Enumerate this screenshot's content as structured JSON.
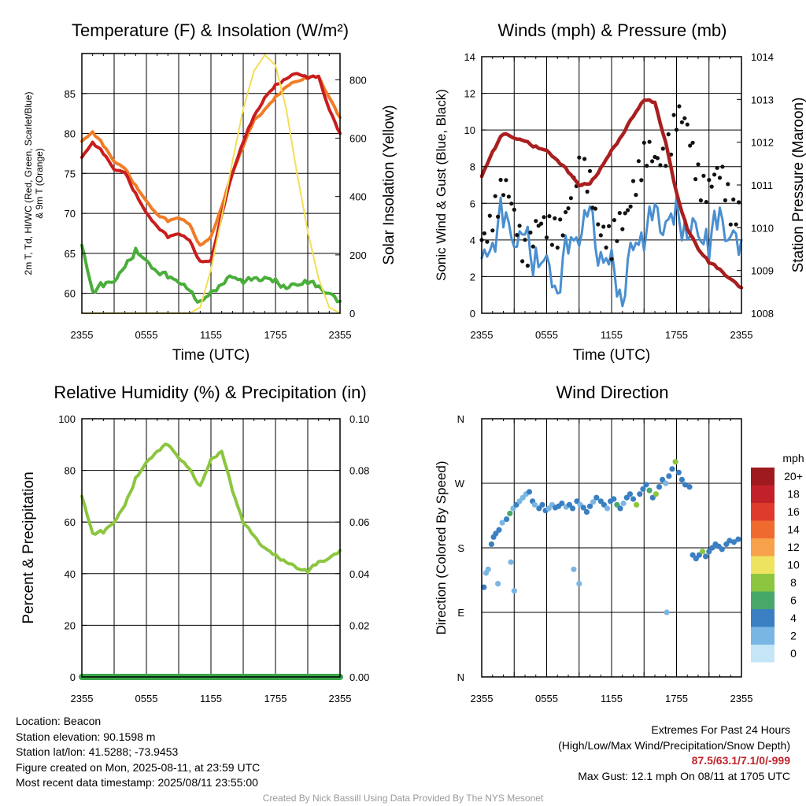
{
  "chart_data": [
    {
      "type": "line",
      "title": "Temperature (F) & Insolation (W/m²)",
      "xlabel": "Time (UTC)",
      "ylabel": "2m T, Td, HI/WC (Red, Green, Scarlet/Blue) & 9m T (Orange)",
      "ylabel_lines": [
        "2m T, Td, HI/WC (Red, Green, Scarlet/Blue)",
        "& 9m T (Orange)"
      ],
      "y2label": "Solar Insolation (Yellow)",
      "x_ticks": [
        "2355",
        "0555",
        "1155",
        "1755",
        "2355"
      ],
      "y_ticks": [
        60,
        65,
        70,
        75,
        80,
        85
      ],
      "y2_ticks": [
        0,
        200,
        400,
        600,
        800
      ],
      "ylim": [
        57.5,
        90
      ],
      "y2lim": [
        0,
        890
      ],
      "x_hours": [
        0,
        1,
        2,
        3,
        4,
        5,
        6,
        7,
        8,
        9,
        10,
        11,
        12,
        13,
        14,
        15,
        16,
        17,
        18,
        19,
        20,
        21,
        22,
        23,
        24
      ],
      "series": [
        {
          "color": "#4aae3a",
          "axis": "left",
          "values": [
            66,
            60.5,
            61,
            61.5,
            63,
            65.5,
            64,
            63,
            62,
            61.5,
            60,
            59,
            60,
            61.5,
            62,
            61.5,
            61.5,
            62,
            61.5,
            61,
            61,
            61.5,
            60.5,
            60,
            59
          ]
        },
        {
          "color": "#f07c27",
          "axis": "left",
          "values": [
            79,
            80.3,
            78.5,
            76.5,
            75.5,
            73.5,
            71.5,
            70,
            69,
            69.5,
            68.5,
            66,
            67,
            71,
            75,
            78.5,
            81.5,
            83,
            84.5,
            86,
            86.5,
            87,
            87,
            84.5,
            82
          ]
        },
        {
          "color": "#c91d1d",
          "axis": "left",
          "values": [
            77,
            79,
            77.5,
            75.5,
            75,
            72.5,
            70,
            68.5,
            67,
            67.5,
            66.5,
            64,
            64,
            70,
            75,
            79,
            82,
            84.5,
            86,
            87,
            87.5,
            87,
            87,
            83,
            80
          ]
        },
        {
          "color": "#f2df55",
          "axis": "right",
          "values": [
            0,
            0,
            0,
            0,
            0,
            0,
            0,
            0,
            0,
            0,
            0,
            20,
            150,
            330,
            520,
            700,
            830,
            885,
            850,
            700,
            480,
            280,
            120,
            20,
            0
          ]
        }
      ]
    },
    {
      "type": "scatter",
      "title": "Winds (mph) & Pressure (mb)",
      "xlabel": "Time (UTC)",
      "ylabel": "Sonic Wind & Gust (Blue, Black)",
      "y2label": "Station Pressure (Maroon)",
      "x_ticks": [
        "2355",
        "0555",
        "1155",
        "1755",
        "2355"
      ],
      "y_ticks": [
        0,
        2,
        4,
        6,
        8,
        10,
        12,
        14
      ],
      "y2_ticks": [
        1008,
        1009,
        1010,
        1011,
        1012,
        1013,
        1014
      ],
      "ylim": [
        0,
        14
      ],
      "y2lim": [
        1008,
        1014
      ],
      "x_hours": [
        0,
        1,
        2,
        3,
        4,
        5,
        6,
        7,
        8,
        9,
        10,
        11,
        12,
        13,
        14,
        15,
        16,
        17,
        18,
        19,
        20,
        21,
        22,
        23,
        24
      ],
      "series": [
        {
          "color": "#4a8fd0",
          "kind": "line",
          "axis": "left",
          "values": [
            3,
            4.5,
            5.2,
            3.8,
            3.5,
            3.2,
            2.8,
            2,
            3.5,
            4.2,
            4.8,
            3.2,
            2.8,
            1.5,
            3.5,
            4.2,
            4.8,
            5,
            5.5,
            5.2,
            4.2,
            3.8,
            4.6,
            4.2,
            4
          ]
        },
        {
          "color": "#111111",
          "kind": "dots",
          "axis": "left",
          "values": [
            4,
            6,
            6.5,
            5,
            4,
            4.5,
            4,
            5,
            6,
            7,
            7.5,
            5,
            3,
            5,
            7.5,
            8,
            8,
            9.5,
            10.5,
            9.5,
            8,
            7,
            7,
            6,
            6.5
          ]
        },
        {
          "color": "#a91f1f",
          "kind": "line",
          "axis": "right",
          "values": [
            1011.2,
            1011.8,
            1012.2,
            1012.1,
            1012.0,
            1011.9,
            1011.8,
            1011.6,
            1011.3,
            1011.0,
            1011.0,
            1011.4,
            1011.8,
            1012.2,
            1012.6,
            1013.0,
            1012.9,
            1012.0,
            1010.8,
            1010.0,
            1009.5,
            1009.2,
            1009.0,
            1008.8,
            1008.6
          ]
        }
      ]
    },
    {
      "type": "line",
      "title": "Relative Humidity (%) & Precipitation (in)",
      "ylabel": "Percent & Precipitation",
      "x_ticks": [
        "2355",
        "0555",
        "1155",
        "1755",
        "2355"
      ],
      "y_ticks": [
        0,
        20,
        40,
        60,
        80,
        100
      ],
      "y2_ticks": [
        "0.00",
        "0.02",
        "0.04",
        "0.06",
        "0.08",
        "0.10"
      ],
      "ylim": [
        0,
        100
      ],
      "y2lim": [
        0,
        0.1
      ],
      "x_hours": [
        0,
        1,
        2,
        3,
        4,
        5,
        6,
        7,
        8,
        9,
        10,
        11,
        12,
        13,
        14,
        15,
        16,
        17,
        18,
        19,
        20,
        21,
        22,
        23,
        24
      ],
      "series": [
        {
          "color": "#8cc63f",
          "axis": "left",
          "values": [
            70,
            56,
            56,
            60,
            66,
            77,
            83,
            88,
            90,
            85,
            80,
            74,
            84,
            88,
            72,
            60,
            54,
            50,
            47,
            45,
            42,
            41,
            44,
            46,
            49
          ]
        },
        {
          "color": "#3aa64a",
          "axis": "right",
          "values": [
            0,
            0,
            0,
            0,
            0,
            0,
            0,
            0,
            0,
            0,
            0,
            0,
            0,
            0,
            0,
            0,
            0,
            0,
            0,
            0,
            0,
            0,
            0,
            0,
            0
          ]
        }
      ]
    },
    {
      "type": "scatter",
      "title": "Wind Direction",
      "ylabel": "Direction (Colored By Speed)",
      "x_ticks": [
        "2355",
        "0555",
        "1155",
        "1755",
        "2355"
      ],
      "y_ticks": [
        "N",
        "E",
        "S",
        "W",
        "N"
      ],
      "ylim": [
        0,
        360
      ],
      "direction_degrees": {
        "N": 0,
        "E": 90,
        "S": 180,
        "W": 270
      },
      "points": [
        [
          0.2,
          125,
          3
        ],
        [
          0.4,
          145,
          2
        ],
        [
          0.6,
          150,
          2
        ],
        [
          0.9,
          185,
          4
        ],
        [
          1.1,
          195,
          3
        ],
        [
          1.3,
          200,
          4
        ],
        [
          1.6,
          205,
          3
        ],
        [
          1.9,
          215,
          2
        ],
        [
          2.3,
          220,
          4
        ],
        [
          2.6,
          228,
          6
        ],
        [
          2.9,
          235,
          2
        ],
        [
          3.2,
          240,
          3
        ],
        [
          3.5,
          245,
          1
        ],
        [
          3.8,
          250,
          2
        ],
        [
          4.1,
          255,
          2
        ],
        [
          4.4,
          258,
          3
        ],
        [
          4.7,
          245,
          4
        ],
        [
          4.9,
          240,
          2
        ],
        [
          5.3,
          235,
          4
        ],
        [
          5.6,
          240,
          3
        ],
        [
          5.9,
          232,
          4
        ],
        [
          6.2,
          235,
          1
        ],
        [
          6.5,
          240,
          2
        ],
        [
          6.8,
          236,
          4
        ],
        [
          7.1,
          238,
          3
        ],
        [
          7.4,
          242,
          4
        ],
        [
          7.8,
          237,
          2
        ],
        [
          8.1,
          240,
          4
        ],
        [
          8.4,
          235,
          3
        ],
        [
          8.8,
          245,
          4
        ],
        [
          9.1,
          240,
          2
        ],
        [
          9.4,
          236,
          4
        ],
        [
          9.7,
          230,
          3
        ],
        [
          10.0,
          238,
          4
        ],
        [
          10.3,
          244,
          2
        ],
        [
          10.6,
          250,
          4
        ],
        [
          11.0,
          245,
          3
        ],
        [
          11.3,
          240,
          4
        ],
        [
          11.6,
          235,
          2
        ],
        [
          11.9,
          245,
          4
        ],
        [
          12.2,
          248,
          3
        ],
        [
          12.5,
          240,
          6
        ],
        [
          12.8,
          235,
          4
        ],
        [
          13.1,
          242,
          2
        ],
        [
          13.4,
          250,
          4
        ],
        [
          13.7,
          255,
          3
        ],
        [
          14.0,
          248,
          4
        ],
        [
          14.3,
          240,
          7
        ],
        [
          14.6,
          255,
          4
        ],
        [
          14.9,
          262,
          3
        ],
        [
          15.2,
          268,
          4
        ],
        [
          15.5,
          260,
          6
        ],
        [
          15.8,
          250,
          4
        ],
        [
          16.1,
          255,
          7
        ],
        [
          16.4,
          265,
          3
        ],
        [
          16.7,
          275,
          4
        ],
        [
          17.0,
          270,
          2
        ],
        [
          17.3,
          280,
          4
        ],
        [
          17.6,
          290,
          3
        ],
        [
          17.9,
          300,
          7
        ],
        [
          18.2,
          285,
          4
        ],
        [
          18.5,
          275,
          3
        ],
        [
          18.8,
          268,
          4
        ],
        [
          19.2,
          265,
          4
        ],
        [
          19.5,
          170,
          4
        ],
        [
          19.8,
          165,
          3
        ],
        [
          20.1,
          170,
          4
        ],
        [
          20.4,
          175,
          7
        ],
        [
          20.7,
          168,
          4
        ],
        [
          21.0,
          175,
          3
        ],
        [
          21.3,
          180,
          4
        ],
        [
          21.6,
          185,
          3
        ],
        [
          21.9,
          182,
          4
        ],
        [
          22.2,
          178,
          4
        ],
        [
          22.6,
          185,
          3
        ],
        [
          22.9,
          190,
          4
        ],
        [
          23.3,
          188,
          4
        ],
        [
          23.7,
          192,
          3
        ],
        [
          1.5,
          130,
          1
        ],
        [
          2.7,
          160,
          2
        ],
        [
          3.0,
          120,
          1
        ],
        [
          8.5,
          150,
          2
        ],
        [
          9.0,
          130,
          1
        ],
        [
          17.1,
          90,
          1
        ]
      ]
    }
  ],
  "colorbar": {
    "unit": "mph",
    "labels": [
      "20+",
      "18",
      "16",
      "14",
      "12",
      "10",
      "8",
      "6",
      "4",
      "2",
      "0"
    ],
    "colors": [
      "#9e1a1e",
      "#c3212a",
      "#dd3b2b",
      "#ef6a2f",
      "#f7a14b",
      "#eee35e",
      "#8cc63f",
      "#47a86a",
      "#3a7fc2",
      "#7ab6e3",
      "#c4e6f7"
    ]
  },
  "info_left": {
    "location": "Location: Beacon",
    "elevation": "Station elevation: 90.1598 m",
    "latlon": "Station lat/lon: 41.5288; -73.9453",
    "created": "Figure created on Mon, 2025-08-11, at 23:59 UTC",
    "recent": "Most recent data timestamp: 2025/08/11 23:55:00"
  },
  "info_right": {
    "heading": "Extremes For Past 24 Hours",
    "legend": "(High/Low/Max Wind/Precipitation/Snow Depth)",
    "values": "87.5/63.1/7.1/0/-999",
    "gust": "Max Gust: 12.1 mph On 08/11 at 1705 UTC"
  },
  "credit": "Created By Nick Bassill Using Data Provided By The NYS Mesonet"
}
